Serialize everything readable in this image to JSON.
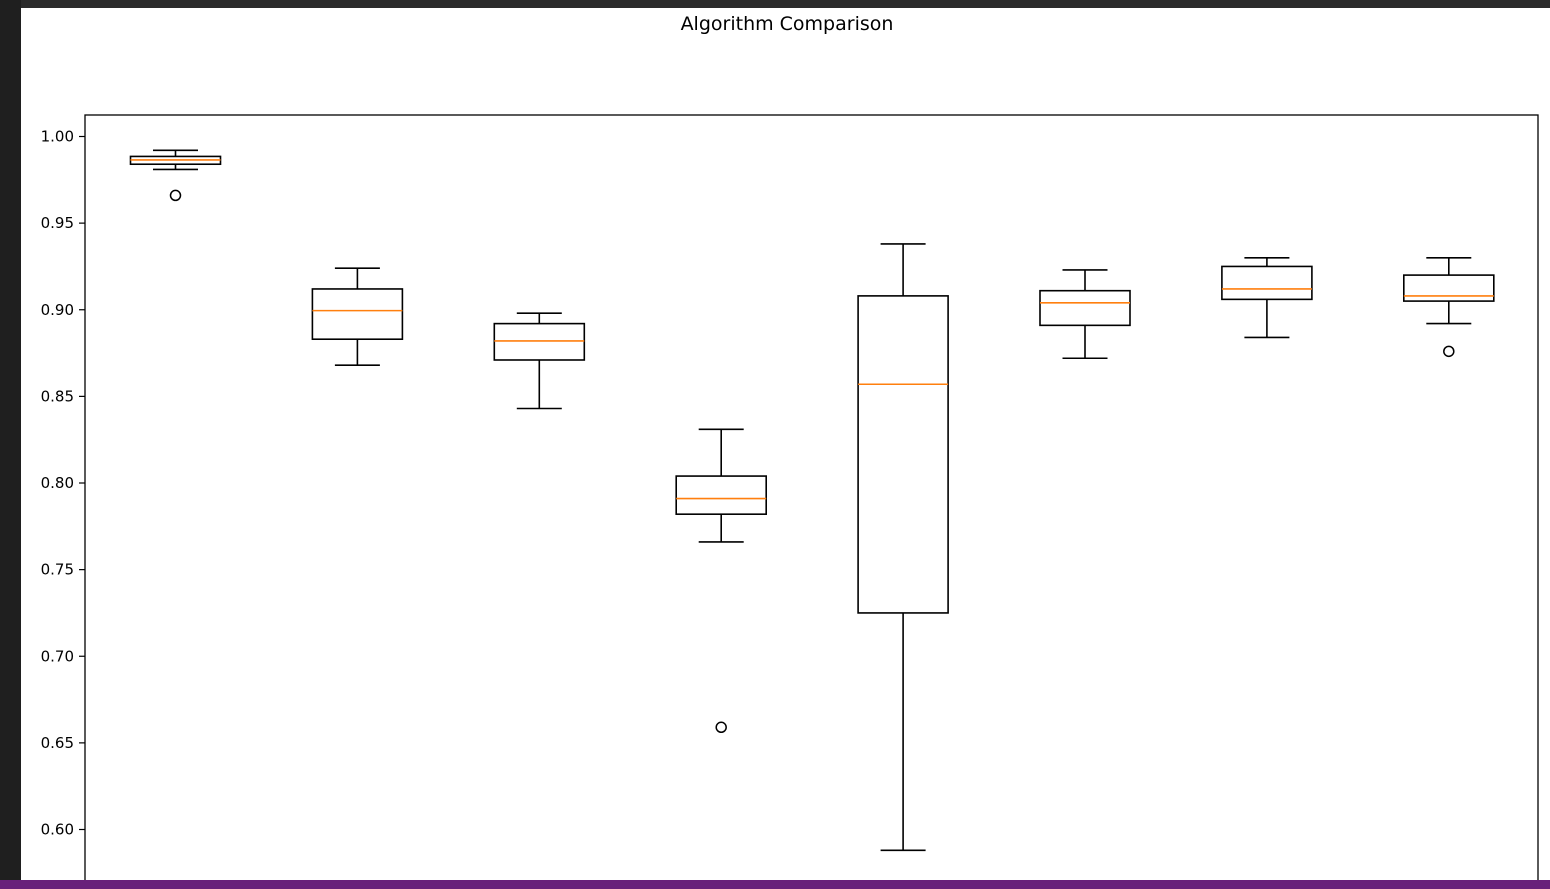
{
  "chart_data": {
    "type": "box",
    "title": "Algorithm Comparison",
    "xlabel": "",
    "ylabel": "",
    "ylim": [
      0.588,
      1.012
    ],
    "yticks": [
      "1.00",
      "0.95",
      "0.90",
      "0.85",
      "0.80",
      "0.75",
      "0.70",
      "0.65",
      "0.60"
    ],
    "grid": false,
    "median_color": "#ff7f0e",
    "box_color": "#000000",
    "boxes": [
      {
        "whisker_low": 0.981,
        "q1": 0.984,
        "median": 0.9865,
        "q3": 0.9885,
        "whisker_high": 0.992,
        "fliers": [
          0.966
        ]
      },
      {
        "whisker_low": 0.868,
        "q1": 0.883,
        "median": 0.8995,
        "q3": 0.912,
        "whisker_high": 0.924,
        "fliers": []
      },
      {
        "whisker_low": 0.843,
        "q1": 0.871,
        "median": 0.882,
        "q3": 0.892,
        "whisker_high": 0.898,
        "fliers": []
      },
      {
        "whisker_low": 0.766,
        "q1": 0.782,
        "median": 0.791,
        "q3": 0.804,
        "whisker_high": 0.831,
        "fliers": [
          0.659
        ]
      },
      {
        "whisker_low": 0.588,
        "q1": 0.725,
        "median": 0.857,
        "q3": 0.908,
        "whisker_high": 0.938,
        "fliers": []
      },
      {
        "whisker_low": 0.872,
        "q1": 0.891,
        "median": 0.904,
        "q3": 0.911,
        "whisker_high": 0.923,
        "fliers": []
      },
      {
        "whisker_low": 0.884,
        "q1": 0.906,
        "median": 0.912,
        "q3": 0.925,
        "whisker_high": 0.93,
        "fliers": []
      },
      {
        "whisker_low": 0.892,
        "q1": 0.905,
        "median": 0.908,
        "q3": 0.92,
        "whisker_high": 0.93,
        "fliers": [
          0.876
        ]
      }
    ]
  }
}
